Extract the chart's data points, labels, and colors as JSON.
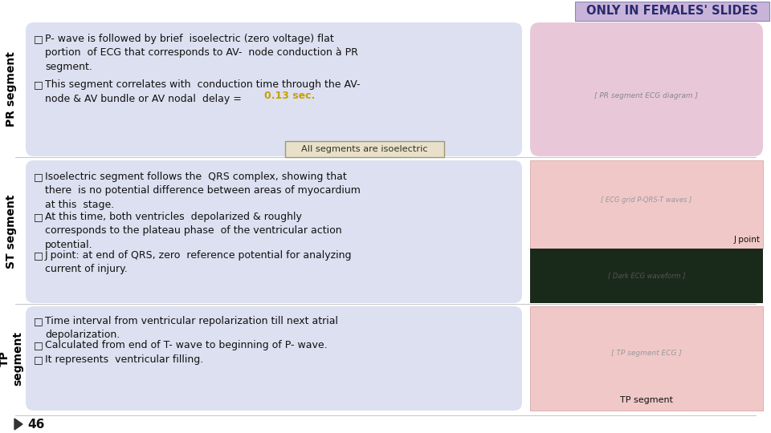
{
  "title_banner": "ONLY IN FEMALES' SLIDES",
  "title_banner_bg": "#c8b4d8",
  "title_banner_text_color": "#2a2a6e",
  "bg_color": "#ffffff",
  "pr_segment_label": "PR segment",
  "pr_box_bg": "#dde0f0",
  "pr_bullet1": "P- wave is followed by brief  isoelectric (zero voltage) flat\nportion  of ECG that corresponds to AV-  node conduction à PR\nsegment.",
  "pr_bullet2_pre": "This segment correlates with  conduction time through the AV-\nnode & AV bundle or AV nodal  delay = ",
  "pr_highlight": "0.13 sec.",
  "pr_highlight_color": "#c8a000",
  "all_segments_box": "All segments are isoelectric",
  "all_segments_box_bg": "#e8e0c8",
  "all_segments_box_border": "#999977",
  "st_segment_label": "ST segment",
  "st_box_bg": "#dde0f0",
  "st_bullet1": "Isoelectric segment follows the  QRS complex, showing that\nthere  is no potential difference between areas of myocardium\nat this  stage.",
  "st_bullet2": "At this time, both ventricles  depolarized & roughly\ncorresponds to the plateau phase  of the ventricular action\npotential.",
  "st_bullet3": "J point: at end of QRS, zero  reference potential for analyzing\ncurrent of injury.",
  "j_point_label": "J point",
  "tp_segment_label": "TP\nsegment",
  "tp_box_bg": "#dde0f0",
  "tp_bullet1": "Time interval from ventricular repolarization till next atrial\ndepolarization.",
  "tp_bullet2": "Calculated from end of T- wave to beginning of P- wave.",
  "tp_bullet3": "It represents  ventricular filling.",
  "tp_image_label": "TP segment",
  "footer_text": "46",
  "divider_color": "#bbbbbb",
  "text_color": "#111111",
  "font_size_body": 9.0,
  "font_size_label": 10.0,
  "font_size_banner": 10.5,
  "pr_img_bg": "#e8c8d8",
  "st_img_bg": "#f0c8c8",
  "st_dark_bg": "#1a2a1a",
  "tp_img_bg": "#f0c8c8"
}
